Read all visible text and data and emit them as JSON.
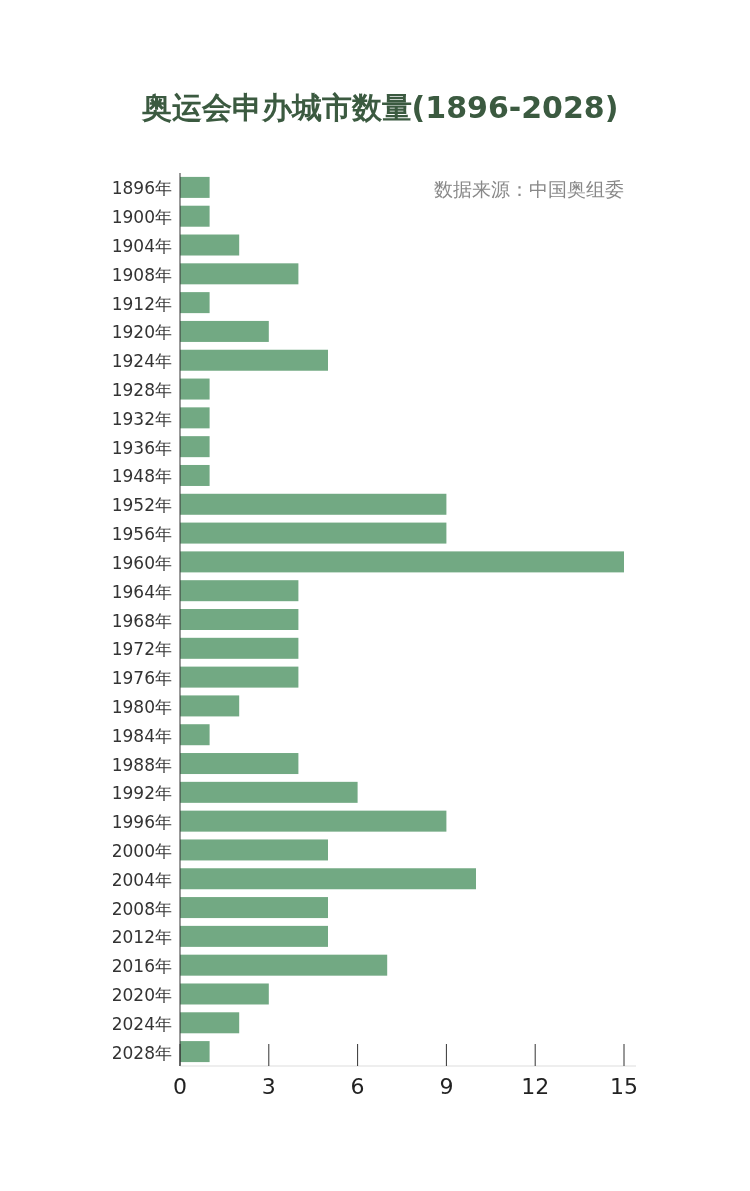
{
  "chart_data": {
    "type": "bar",
    "orientation": "horizontal",
    "title": "奥运会申办城市数量(1896-2028)",
    "annotations": [
      "数据来源：中国奥组委"
    ],
    "categories": [
      "1896年",
      "1900年",
      "1904年",
      "1908年",
      "1912年",
      "1920年",
      "1924年",
      "1928年",
      "1932年",
      "1936年",
      "1948年",
      "1952年",
      "1956年",
      "1960年",
      "1964年",
      "1968年",
      "1972年",
      "1976年",
      "1980年",
      "1984年",
      "1988年",
      "1992年",
      "1996年",
      "2000年",
      "2004年",
      "2008年",
      "2012年",
      "2016年",
      "2020年",
      "2024年",
      "2028年"
    ],
    "values": [
      1,
      1,
      2,
      4,
      1,
      3,
      5,
      1,
      1,
      1,
      1,
      9,
      9,
      15,
      4,
      4,
      4,
      4,
      2,
      1,
      4,
      6,
      9,
      5,
      10,
      5,
      5,
      7,
      3,
      2,
      1
    ],
    "color": "#72a983",
    "xlim": [
      0,
      15
    ],
    "xticks": [
      0,
      3,
      6,
      9,
      12,
      15
    ],
    "grid": false
  }
}
